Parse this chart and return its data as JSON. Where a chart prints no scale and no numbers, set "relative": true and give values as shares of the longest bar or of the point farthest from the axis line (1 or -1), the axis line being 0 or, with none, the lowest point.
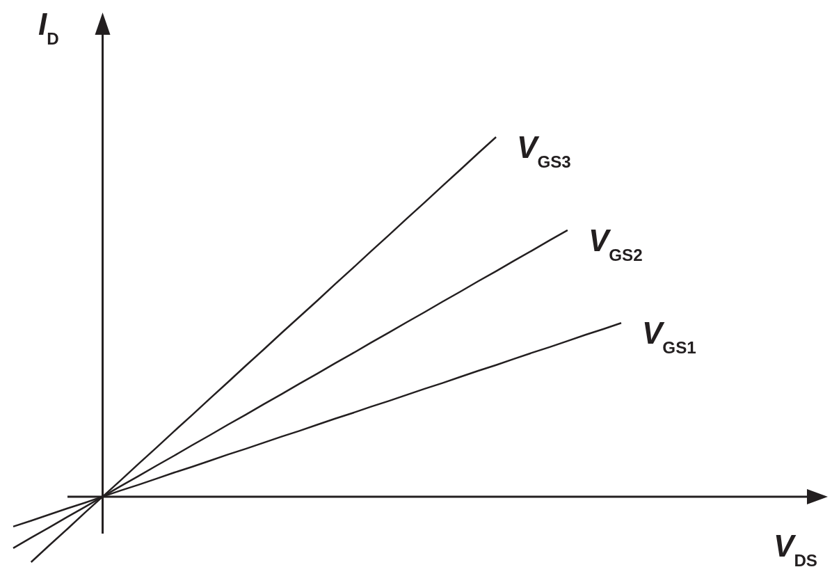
{
  "chart_data": {
    "type": "line",
    "relative": true,
    "xlabel": "V$_{DS}$",
    "ylabel": "I$_{D}$",
    "marker": "none",
    "line_style": "solid",
    "categories": [
      null,
      null,
      null,
      null,
      null,
      null,
      null,
      null,
      null,
      null,
      null,
      null,
      null,
      null,
      null,
      null,
      null,
      null,
      null,
      null,
      null,
      null,
      null,
      null,
      null,
      null,
      null,
      null,
      null,
      null,
      null,
      null,
      null,
      null,
      null
    ],
    "series": [
      {
        "name": "V$_{GS1}$",
        "color": "#231f20",
        "values": [
          -0.083,
          -0.067,
          -0.05,
          -0.033,
          -0.017,
          0,
          0.017,
          0.033,
          0.05,
          0.067,
          0.083,
          0.1,
          0.117,
          0.133,
          0.15,
          0.167,
          0.183,
          0.2,
          0.217,
          0.233,
          0.25,
          0.266,
          0.283,
          0.3,
          0.316,
          0.333,
          0.35,
          0.366,
          0.383,
          0.4,
          0.416,
          0.433,
          0.45,
          0.466,
          0.483
        ]
      },
      {
        "name": "V$_{GS2}$",
        "color": "#231f20",
        "values": [
          -0.143,
          -0.114,
          -0.086,
          -0.057,
          -0.029,
          0,
          0.029,
          0.057,
          0.086,
          0.114,
          0.143,
          0.171,
          0.2,
          0.228,
          0.257,
          0.285,
          0.314,
          0.342,
          0.371,
          0.399,
          0.428,
          0.456,
          0.485,
          0.513,
          0.542,
          0.57,
          0.599,
          0.627,
          0.656,
          0.684,
          0.713,
          0.741,
          null,
          null,
          null
        ]
      },
      {
        "name": "V$_{GS3}$",
        "color": "#231f20",
        "values": [
          null,
          -0.182,
          -0.136,
          -0.091,
          -0.045,
          0,
          0.045,
          0.091,
          0.136,
          0.182,
          0.227,
          0.273,
          0.318,
          0.364,
          0.409,
          0.455,
          0.5,
          0.545,
          0.591,
          0.636,
          0.682,
          0.727,
          0.773,
          0.818,
          0.864,
          0.909,
          0.955,
          1,
          null,
          null,
          null,
          null,
          null,
          null,
          null
        ]
      }
    ]
  }
}
